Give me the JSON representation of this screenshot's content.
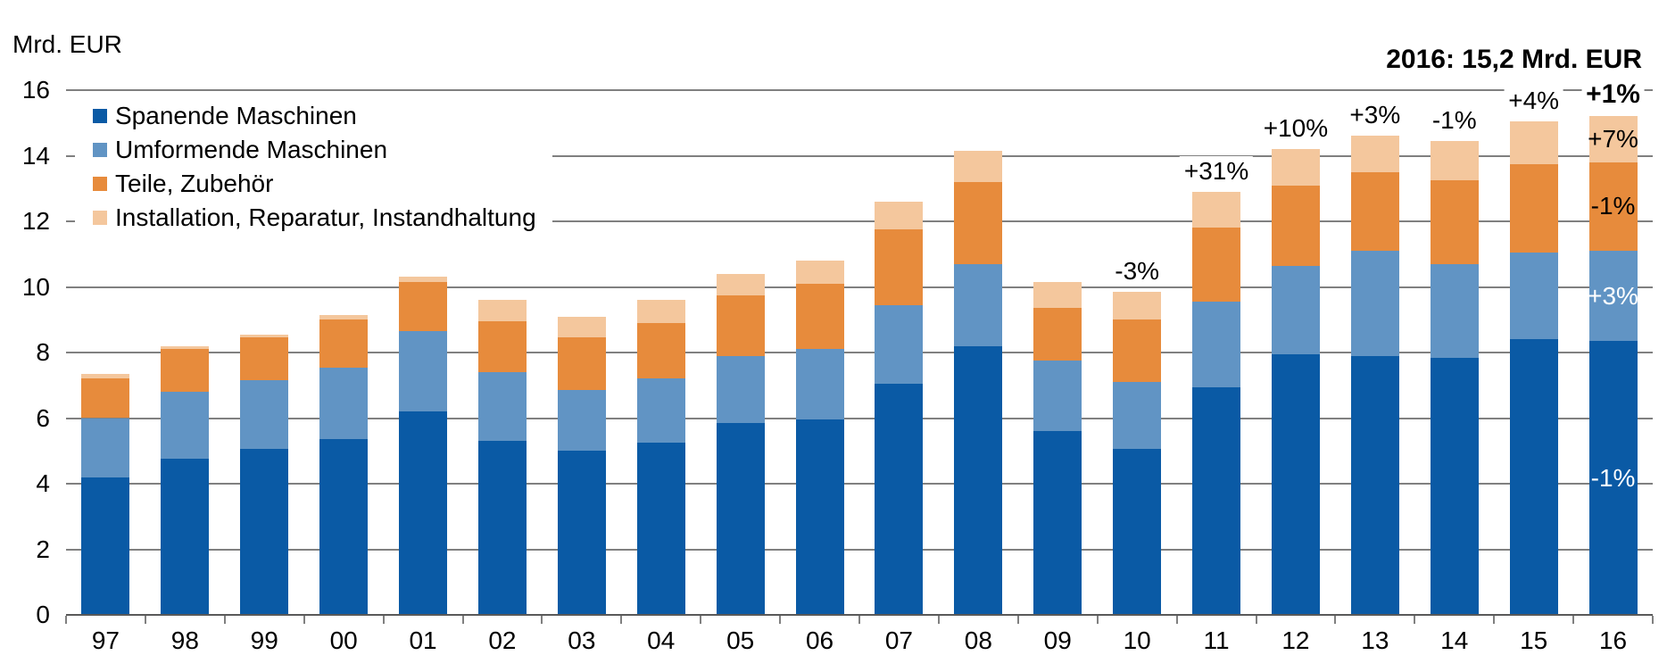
{
  "header": {
    "unit_label": "Mrd. EUR",
    "title": "2016: 15,2 Mrd. EUR"
  },
  "colors": {
    "gridline": "#808080",
    "axis": "#595959",
    "background": "#FFFFFF",
    "text": "#000000"
  },
  "y_axis": {
    "tick_labels": [
      "0",
      "2",
      "4",
      "6",
      "8",
      "10",
      "12",
      "14",
      "16"
    ]
  },
  "chart_data": {
    "type": "bar",
    "stacked": true,
    "title": "2016: 15,2 Mrd. EUR",
    "ylabel": "Mrd. EUR",
    "ylim": [
      0,
      16
    ],
    "y_gridline_step": 2,
    "grid": true,
    "legend_position": "top-left-inside",
    "categories": [
      "97",
      "98",
      "99",
      "00",
      "01",
      "02",
      "03",
      "04",
      "05",
      "06",
      "07",
      "08",
      "09",
      "10",
      "11",
      "12",
      "13",
      "14",
      "15",
      "16"
    ],
    "series": [
      {
        "name": "Spanende Maschinen",
        "color": "#0A5AA5",
        "values": [
          4.2,
          4.75,
          5.05,
          5.35,
          6.2,
          5.3,
          5.0,
          5.25,
          5.85,
          5.95,
          7.05,
          8.2,
          5.6,
          5.05,
          6.95,
          7.95,
          7.9,
          7.85,
          8.4,
          8.35
        ]
      },
      {
        "name": "Umformende Maschinen",
        "color": "#6194C4",
        "values": [
          1.8,
          2.05,
          2.1,
          2.2,
          2.45,
          2.1,
          1.85,
          1.95,
          2.05,
          2.15,
          2.4,
          2.5,
          2.15,
          2.05,
          2.6,
          2.7,
          3.2,
          2.85,
          2.65,
          2.75
        ]
      },
      {
        "name": "Teile, Zubehör",
        "color": "#E78B3C",
        "values": [
          1.2,
          1.3,
          1.3,
          1.45,
          1.5,
          1.55,
          1.6,
          1.7,
          1.85,
          2.0,
          2.3,
          2.5,
          1.6,
          1.9,
          2.25,
          2.45,
          2.4,
          2.55,
          2.7,
          2.7
        ]
      },
      {
        "name": "Installation, Reparatur, Instandhaltung",
        "color": "#F4C79D",
        "values": [
          0.15,
          0.1,
          0.1,
          0.15,
          0.15,
          0.65,
          0.65,
          0.7,
          0.65,
          0.7,
          0.85,
          0.95,
          0.8,
          0.85,
          1.1,
          1.1,
          1.1,
          1.2,
          1.3,
          1.4
        ]
      }
    ],
    "total_change_annotations": [
      {
        "category": "10",
        "label": "-3%",
        "emphasis": false
      },
      {
        "category": "11",
        "label": "+31%",
        "emphasis": false
      },
      {
        "category": "12",
        "label": "+10%",
        "emphasis": false
      },
      {
        "category": "13",
        "label": "+3%",
        "emphasis": false
      },
      {
        "category": "14",
        "label": "-1%",
        "emphasis": false
      },
      {
        "category": "15",
        "label": "+4%",
        "emphasis": false
      },
      {
        "category": "16",
        "label": "+1%",
        "emphasis": true
      }
    ],
    "segment_change_labels": {
      "category": "16",
      "labels": [
        {
          "series": "Spanende Maschinen",
          "label": "-1%",
          "text_color": "#FFFFFF"
        },
        {
          "series": "Umformende Maschinen",
          "label": "+3%",
          "text_color": "#FFFFFF"
        },
        {
          "series": "Teile, Zubehör",
          "label": "-1%",
          "text_color": "#000000"
        },
        {
          "series": "Installation, Reparatur, Instandhaltung",
          "label": "+7%",
          "text_color": "#000000"
        }
      ]
    }
  }
}
